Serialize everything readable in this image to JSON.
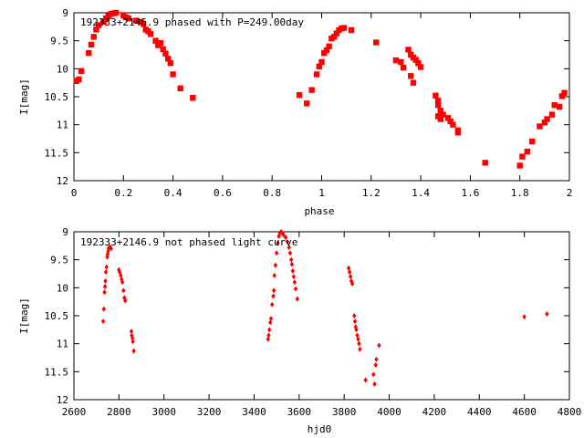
{
  "chart_data": [
    {
      "type": "scatter",
      "title": "192333+2146.9 phased with P=249.00day",
      "xlabel": "phase",
      "ylabel": "I[mag]",
      "xlim": [
        0,
        2
      ],
      "ylim": [
        12,
        9
      ],
      "y_inverted": true,
      "xticks": [
        "0",
        "0.2",
        "0.4",
        "0.6",
        "0.8",
        "1",
        "1.2",
        "1.4",
        "1.6",
        "1.8",
        "2"
      ],
      "yticks": [
        "9",
        "9.5",
        "10",
        "10.5",
        "11",
        "11.5",
        "12"
      ],
      "marker_color": "#ff0000",
      "grid": false,
      "series": [
        {
          "points": [
            [
              0.01,
              10.22
            ],
            [
              0.02,
              10.19
            ],
            [
              0.03,
              10.04
            ],
            [
              0.06,
              9.72
            ],
            [
              0.07,
              9.57
            ],
            [
              0.08,
              9.43
            ],
            [
              0.09,
              9.3
            ],
            [
              0.1,
              9.22
            ],
            [
              0.12,
              9.16
            ],
            [
              0.13,
              9.1
            ],
            [
              0.14,
              9.06
            ],
            [
              0.15,
              9.02
            ],
            [
              0.16,
              9.01
            ],
            [
              0.17,
              9.0
            ],
            [
              0.2,
              9.05
            ],
            [
              0.21,
              9.08
            ],
            [
              0.22,
              9.1
            ],
            [
              0.25,
              9.14
            ],
            [
              0.27,
              9.16
            ],
            [
              0.28,
              9.2
            ],
            [
              0.29,
              9.3
            ],
            [
              0.3,
              9.33
            ],
            [
              0.31,
              9.38
            ],
            [
              0.33,
              9.5
            ],
            [
              0.34,
              9.58
            ],
            [
              0.35,
              9.54
            ],
            [
              0.36,
              9.65
            ],
            [
              0.37,
              9.73
            ],
            [
              0.38,
              9.82
            ],
            [
              0.39,
              9.9
            ],
            [
              0.4,
              10.1
            ],
            [
              0.43,
              10.35
            ],
            [
              0.48,
              10.52
            ],
            [
              0.91,
              10.47
            ],
            [
              0.94,
              10.62
            ],
            [
              0.96,
              10.38
            ],
            [
              0.98,
              10.1
            ],
            [
              0.99,
              9.96
            ],
            [
              1.0,
              9.88
            ],
            [
              1.01,
              9.72
            ],
            [
              1.02,
              9.67
            ],
            [
              1.03,
              9.6
            ],
            [
              1.04,
              9.46
            ],
            [
              1.05,
              9.43
            ],
            [
              1.06,
              9.37
            ],
            [
              1.07,
              9.31
            ],
            [
              1.08,
              9.28
            ],
            [
              1.09,
              9.27
            ],
            [
              1.12,
              9.31
            ],
            [
              1.22,
              9.53
            ],
            [
              1.3,
              9.85
            ],
            [
              1.32,
              9.88
            ],
            [
              1.33,
              9.98
            ],
            [
              1.35,
              9.66
            ],
            [
              1.36,
              9.75
            ],
            [
              1.37,
              9.8
            ],
            [
              1.38,
              9.84
            ],
            [
              1.39,
              9.9
            ],
            [
              1.4,
              9.97
            ],
            [
              1.36,
              10.13
            ],
            [
              1.37,
              10.25
            ],
            [
              1.46,
              10.48
            ],
            [
              1.47,
              10.57
            ],
            [
              1.47,
              10.65
            ],
            [
              1.48,
              10.75
            ],
            [
              1.49,
              10.82
            ],
            [
              1.47,
              10.85
            ],
            [
              1.48,
              10.9
            ],
            [
              1.51,
              10.88
            ],
            [
              1.52,
              10.94
            ],
            [
              1.53,
              11.0
            ],
            [
              1.55,
              11.1
            ],
            [
              1.55,
              11.14
            ],
            [
              1.66,
              11.68
            ],
            [
              1.8,
              11.73
            ],
            [
              1.81,
              11.57
            ],
            [
              1.83,
              11.48
            ],
            [
              1.85,
              11.3
            ],
            [
              1.88,
              11.03
            ],
            [
              1.9,
              10.96
            ],
            [
              1.91,
              10.9
            ],
            [
              1.93,
              10.82
            ],
            [
              1.94,
              10.65
            ],
            [
              1.96,
              10.68
            ],
            [
              1.97,
              10.49
            ],
            [
              1.98,
              10.43
            ]
          ]
        }
      ]
    },
    {
      "type": "scatter",
      "title": "192333+2146.9 not phased light curve",
      "xlabel": "hjd0",
      "ylabel": "I[mag]",
      "xlim": [
        2600,
        4800
      ],
      "ylim": [
        12,
        9
      ],
      "y_inverted": true,
      "xticks": [
        "2600",
        "2800",
        "3000",
        "3200",
        "3400",
        "3600",
        "3800",
        "4000",
        "4200",
        "4400",
        "4600",
        "4800"
      ],
      "yticks": [
        "9",
        "9.5",
        "10",
        "10.5",
        "11",
        "11.5",
        "12"
      ],
      "marker_color": "#ff0000",
      "grid": false,
      "series": [
        {
          "points": [
            [
              2730,
              10.6
            ],
            [
              2733,
              10.38
            ],
            [
              2736,
              10.08
            ],
            [
              2738,
              9.98
            ],
            [
              2740,
              9.88
            ],
            [
              2742,
              9.72
            ],
            [
              2745,
              9.63
            ],
            [
              2748,
              9.45
            ],
            [
              2750,
              9.4
            ],
            [
              2752,
              9.35
            ],
            [
              2754,
              9.3
            ],
            [
              2757,
              9.28
            ],
            [
              2762,
              9.28
            ],
            [
              2765,
              9.3
            ],
            [
              2800,
              9.68
            ],
            [
              2803,
              9.72
            ],
            [
              2808,
              9.78
            ],
            [
              2812,
              9.85
            ],
            [
              2815,
              9.9
            ],
            [
              2820,
              10.05
            ],
            [
              2824,
              10.18
            ],
            [
              2828,
              10.23
            ],
            [
              2855,
              10.78
            ],
            [
              2857,
              10.85
            ],
            [
              2860,
              10.9
            ],
            [
              2862,
              10.96
            ],
            [
              2866,
              11.13
            ],
            [
              3462,
              10.92
            ],
            [
              3465,
              10.85
            ],
            [
              3468,
              10.75
            ],
            [
              3472,
              10.62
            ],
            [
              3475,
              10.55
            ],
            [
              3480,
              10.3
            ],
            [
              3485,
              10.15
            ],
            [
              3488,
              10.05
            ],
            [
              3490,
              9.78
            ],
            [
              3495,
              9.6
            ],
            [
              3500,
              9.38
            ],
            [
              3505,
              9.2
            ],
            [
              3510,
              9.08
            ],
            [
              3515,
              9.02
            ],
            [
              3520,
              9.0
            ],
            [
              3525,
              9.02
            ],
            [
              3530,
              9.05
            ],
            [
              3540,
              9.1
            ],
            [
              3548,
              9.18
            ],
            [
              3555,
              9.28
            ],
            [
              3560,
              9.38
            ],
            [
              3565,
              9.5
            ],
            [
              3568,
              9.58
            ],
            [
              3572,
              9.7
            ],
            [
              3576,
              9.8
            ],
            [
              3580,
              9.9
            ],
            [
              3585,
              10.02
            ],
            [
              3592,
              10.2
            ],
            [
              3820,
              9.65
            ],
            [
              3824,
              9.72
            ],
            [
              3828,
              9.8
            ],
            [
              3832,
              9.88
            ],
            [
              3836,
              9.93
            ],
            [
              3845,
              10.5
            ],
            [
              3848,
              10.6
            ],
            [
              3851,
              10.7
            ],
            [
              3854,
              10.75
            ],
            [
              3858,
              10.85
            ],
            [
              3862,
              10.92
            ],
            [
              3866,
              11.0
            ],
            [
              3870,
              11.1
            ],
            [
              3895,
              11.65
            ],
            [
              3930,
              11.55
            ],
            [
              3935,
              11.72
            ],
            [
              3940,
              11.38
            ],
            [
              3943,
              11.28
            ],
            [
              3955,
              11.03
            ],
            [
              4600,
              10.52
            ],
            [
              4700,
              10.47
            ]
          ]
        }
      ]
    }
  ]
}
